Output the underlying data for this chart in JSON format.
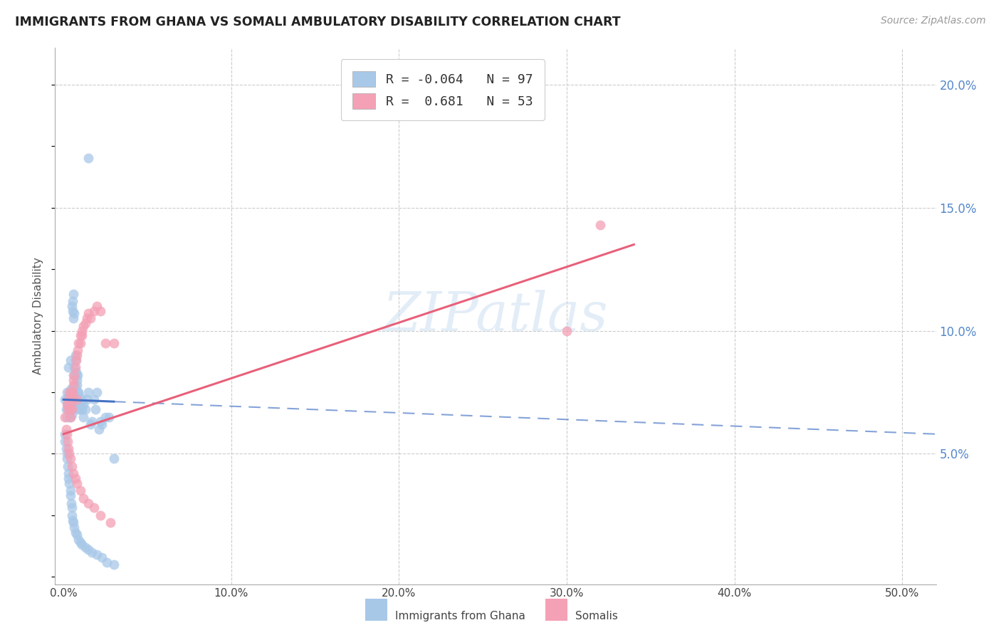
{
  "title": "IMMIGRANTS FROM GHANA VS SOMALI AMBULATORY DISABILITY CORRELATION CHART",
  "source": "Source: ZipAtlas.com",
  "ylabel": "Ambulatory Disability",
  "ytick_labels": [
    "5.0%",
    "10.0%",
    "15.0%",
    "20.0%"
  ],
  "ytick_values": [
    5.0,
    10.0,
    15.0,
    20.0
  ],
  "xtick_labels": [
    "0.0%",
    "10.0%",
    "20.0%",
    "30.0%",
    "40.0%",
    "50.0%"
  ],
  "xtick_values": [
    0.0,
    10.0,
    20.0,
    30.0,
    40.0,
    50.0
  ],
  "xlim": [
    -0.5,
    52.0
  ],
  "ylim": [
    -0.3,
    21.5
  ],
  "legend_ghana_R": "-0.064",
  "legend_ghana_N": "97",
  "legend_somali_R": "0.681",
  "legend_somali_N": "53",
  "ghana_color": "#a8c8e8",
  "somali_color": "#f4a0b5",
  "ghana_line_color": "#4472c4",
  "somali_line_color": "#e8607a",
  "watermark_color": "#c8ddf0",
  "ghana_x": [
    0.1,
    0.15,
    0.2,
    0.2,
    0.25,
    0.25,
    0.3,
    0.3,
    0.3,
    0.35,
    0.35,
    0.35,
    0.4,
    0.4,
    0.4,
    0.4,
    0.45,
    0.45,
    0.5,
    0.5,
    0.5,
    0.5,
    0.5,
    0.55,
    0.55,
    0.55,
    0.55,
    0.6,
    0.6,
    0.6,
    0.6,
    0.65,
    0.65,
    0.65,
    0.7,
    0.7,
    0.7,
    0.75,
    0.75,
    0.8,
    0.8,
    0.85,
    0.85,
    0.9,
    0.9,
    0.95,
    0.95,
    1.0,
    1.0,
    1.1,
    1.1,
    1.2,
    1.2,
    1.3,
    1.4,
    1.5,
    1.6,
    1.7,
    1.8,
    1.9,
    2.0,
    2.1,
    2.2,
    2.3,
    2.5,
    2.7,
    3.0,
    0.1,
    0.1,
    0.15,
    0.2,
    0.2,
    0.25,
    0.3,
    0.3,
    0.35,
    0.4,
    0.4,
    0.45,
    0.5,
    0.5,
    0.55,
    0.6,
    0.65,
    0.7,
    0.8,
    0.9,
    1.0,
    1.1,
    1.3,
    1.5,
    1.7,
    2.0,
    2.3,
    2.6,
    3.0,
    1.5
  ],
  "ghana_y": [
    7.2,
    6.8,
    7.5,
    6.5,
    7.0,
    7.3,
    6.8,
    7.1,
    8.5,
    7.0,
    7.2,
    6.8,
    6.5,
    7.3,
    7.6,
    8.8,
    6.9,
    7.1,
    6.8,
    7.4,
    6.6,
    11.0,
    7.2,
    11.2,
    10.8,
    7.5,
    7.2,
    10.5,
    11.5,
    7.7,
    8.2,
    10.7,
    7.5,
    8.5,
    8.8,
    9.0,
    7.7,
    8.2,
    8.3,
    8.0,
    7.8,
    8.2,
    7.5,
    7.5,
    6.8,
    7.0,
    7.3,
    6.8,
    7.0,
    6.8,
    7.2,
    6.5,
    7.0,
    6.8,
    7.2,
    7.5,
    6.2,
    6.3,
    7.2,
    6.8,
    7.5,
    6.0,
    6.3,
    6.2,
    6.5,
    6.5,
    4.8,
    5.8,
    5.5,
    5.2,
    5.0,
    4.8,
    4.5,
    4.2,
    4.0,
    3.8,
    3.5,
    3.3,
    3.0,
    2.8,
    2.5,
    2.3,
    2.2,
    2.0,
    1.8,
    1.7,
    1.5,
    1.4,
    1.3,
    1.2,
    1.1,
    1.0,
    0.9,
    0.8,
    0.6,
    0.5,
    17.0
  ],
  "somali_x": [
    0.1,
    0.2,
    0.25,
    0.3,
    0.35,
    0.4,
    0.4,
    0.45,
    0.5,
    0.5,
    0.55,
    0.6,
    0.65,
    0.7,
    0.75,
    0.8,
    0.85,
    0.9,
    1.0,
    1.0,
    1.1,
    1.1,
    1.2,
    1.3,
    1.4,
    1.5,
    1.6,
    1.8,
    2.0,
    2.2,
    2.5,
    3.0,
    0.15,
    0.2,
    0.25,
    0.3,
    0.35,
    0.4,
    0.5,
    0.6,
    0.7,
    0.8,
    1.0,
    1.2,
    1.5,
    1.8,
    2.2,
    2.8,
    30.0,
    32.0,
    0.5,
    0.6,
    0.8
  ],
  "somali_y": [
    6.5,
    7.0,
    6.8,
    7.2,
    7.5,
    6.8,
    6.5,
    7.0,
    7.3,
    6.8,
    7.5,
    8.0,
    8.2,
    8.5,
    8.8,
    9.0,
    9.2,
    9.5,
    9.5,
    9.8,
    10.0,
    9.8,
    10.2,
    10.3,
    10.5,
    10.7,
    10.5,
    10.8,
    11.0,
    10.8,
    9.5,
    9.5,
    6.0,
    5.8,
    5.5,
    5.2,
    5.0,
    4.8,
    4.5,
    4.2,
    4.0,
    3.8,
    3.5,
    3.2,
    3.0,
    2.8,
    2.5,
    2.2,
    10.0,
    14.3,
    7.5,
    7.8,
    7.2
  ],
  "ghana_line_x0": 0.0,
  "ghana_line_x1": 52.0,
  "ghana_line_y0": 7.2,
  "ghana_line_y1": 5.8,
  "ghana_solid_x1": 3.0,
  "somali_line_x0": 0.0,
  "somali_line_x1": 34.0,
  "somali_line_y0": 5.8,
  "somali_line_y1": 13.5
}
